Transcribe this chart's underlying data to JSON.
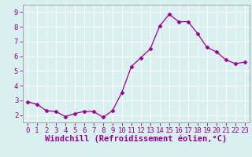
{
  "x": [
    0,
    1,
    2,
    3,
    4,
    5,
    6,
    7,
    8,
    9,
    10,
    11,
    12,
    13,
    14,
    15,
    16,
    17,
    18,
    19,
    20,
    21,
    22,
    23
  ],
  "y": [
    2.9,
    2.75,
    2.3,
    2.25,
    1.9,
    2.1,
    2.25,
    2.25,
    1.85,
    2.3,
    3.55,
    5.3,
    5.9,
    6.5,
    8.05,
    8.85,
    8.35,
    8.35,
    7.55,
    6.6,
    6.3,
    5.75,
    5.5,
    5.6
  ],
  "line_color": "#990099",
  "marker": "D",
  "marker_size": 2.5,
  "bg_color": "#d8f0f0",
  "grid_color": "#ffffff",
  "xlabel": "Windchill (Refroidissement éolien,°C)",
  "xlabel_color": "#990099",
  "tick_color": "#990099",
  "spine_color": "#999999",
  "xlim": [
    -0.5,
    23.5
  ],
  "ylim": [
    1.5,
    9.5
  ],
  "yticks": [
    2,
    3,
    4,
    5,
    6,
    7,
    8,
    9
  ],
  "xticks": [
    0,
    1,
    2,
    3,
    4,
    5,
    6,
    7,
    8,
    9,
    10,
    11,
    12,
    13,
    14,
    15,
    16,
    17,
    18,
    19,
    20,
    21,
    22,
    23
  ],
  "tick_fontsize": 6.5,
  "xlabel_fontsize": 7.5,
  "line_width": 0.9
}
